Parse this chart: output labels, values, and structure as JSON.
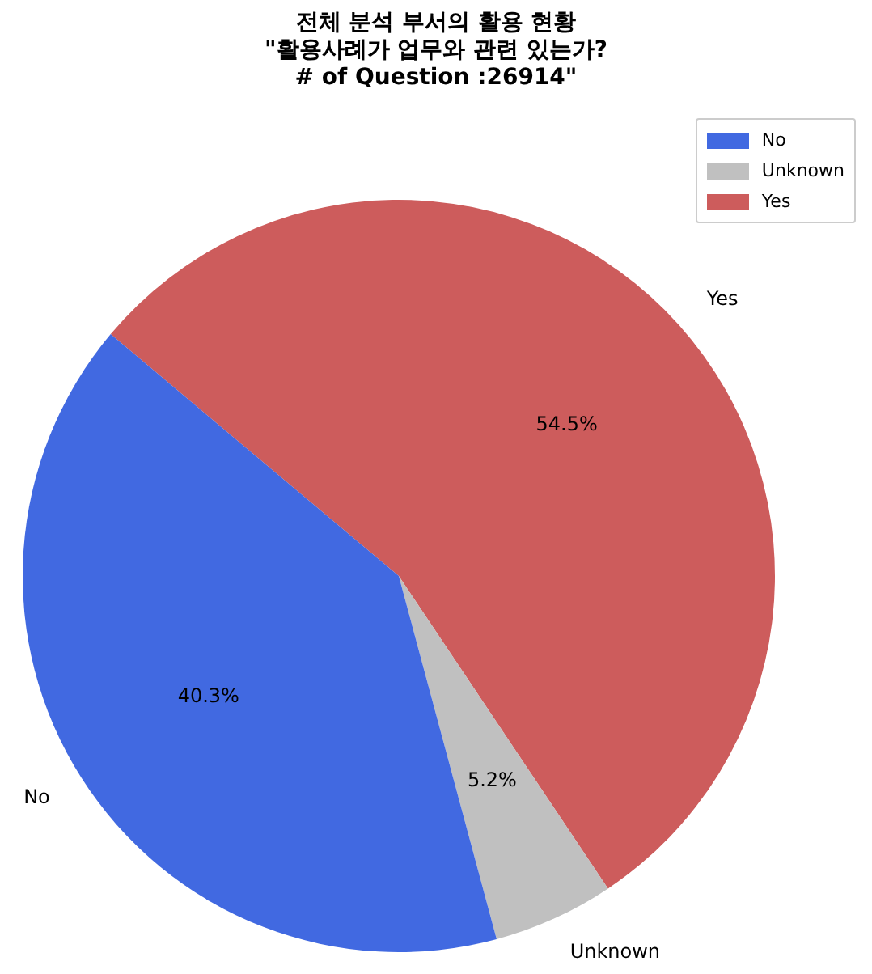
{
  "chart_data": {
    "type": "pie",
    "title": "전체 분석 부서의 활용 현황\n\"활용사례가 업무와 관련 있는가?\n# of Question :26914\"",
    "categories": [
      "No",
      "Unknown",
      "Yes"
    ],
    "values": [
      40.3,
      5.2,
      54.5
    ],
    "colors": [
      "#4169e1",
      "#c0c0c0",
      "#cd5c5c"
    ],
    "value_labels": [
      "40.3%",
      "5.2%",
      "54.5%"
    ],
    "legend": "top right"
  }
}
